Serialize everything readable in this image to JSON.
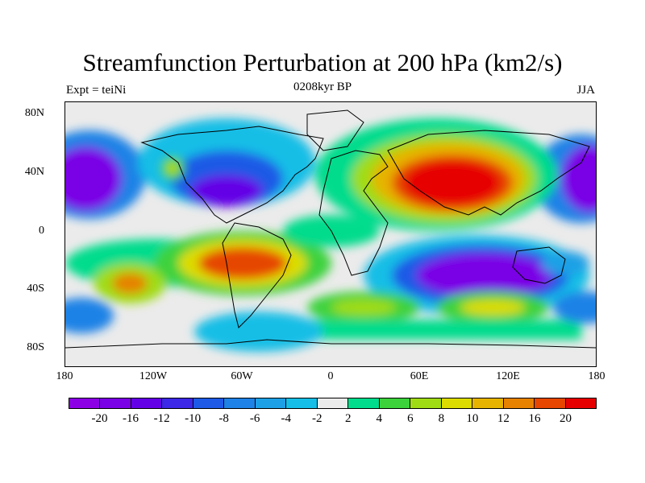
{
  "title": "Streamfunction Perturbation at 200 hPa (km2/s)",
  "left_label": "Expt = teiNi",
  "center_label": "0208kyr BP",
  "right_label": "JJA",
  "map": {
    "projection": "cylindrical equidistant",
    "lon_range": [
      -180,
      180
    ],
    "lat_range": [
      -90,
      90
    ],
    "field": "200 hPa streamfunction perturbation",
    "units": "km2/s",
    "features": [
      {
        "name": "Eurasia/Asia high",
        "sign": "positive",
        "peak": 20
      },
      {
        "name": "South Atlantic high",
        "sign": "positive",
        "peak": 16
      },
      {
        "name": "South Pacific high",
        "sign": "positive",
        "peak": 12
      },
      {
        "name": "Indian Ocean/Australia low",
        "sign": "negative",
        "peak": -20
      },
      {
        "name": "North Pacific low",
        "sign": "negative",
        "peak": -20
      },
      {
        "name": "Southern Ocean 120E high",
        "sign": "positive",
        "peak": 10
      }
    ]
  },
  "lat_ticks": [
    "80N",
    "40N",
    "0",
    "40S",
    "80S"
  ],
  "lon_ticks": [
    "180",
    "120W",
    "60W",
    "0",
    "60E",
    "120E",
    "180"
  ],
  "colorbar": {
    "colors": [
      "#8c00e6",
      "#7a00e6",
      "#6300e6",
      "#3c28e6",
      "#1e5ae6",
      "#1e82e6",
      "#1ea0e6",
      "#14bee6",
      "#ebebeb",
      "#00dc8c",
      "#3cd23c",
      "#a0dc14",
      "#dcdc00",
      "#e6b400",
      "#e68200",
      "#e64600",
      "#e60000"
    ],
    "labels": [
      "-20",
      "-16",
      "-12",
      "-10",
      "-8",
      "-6",
      "-4",
      "-2",
      "2",
      "4",
      "6",
      "8",
      "10",
      "12",
      "16",
      "20"
    ]
  }
}
